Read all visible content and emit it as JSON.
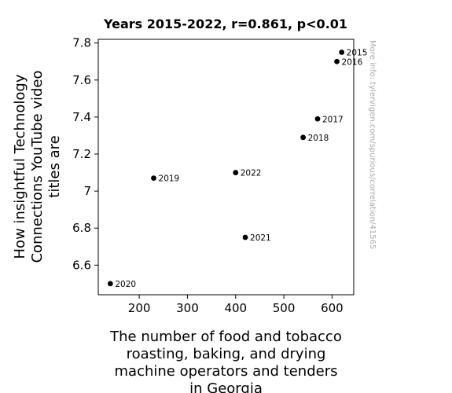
{
  "chart_data": {
    "type": "scatter",
    "title": "Years 2015-2022, r=0.861, p<0.01",
    "xlabel_lines": [
      "The number of food and tobacco",
      "roasting, baking, and drying",
      "machine operators and tenders",
      "in Georgia"
    ],
    "ylabel_lines": [
      "How insightful Technology",
      "Connections YouTube video",
      "titles are"
    ],
    "side_note": "More info: tylervigen.com/spurious/correlation/41565",
    "xlim": [
      115,
      645
    ],
    "ylim": [
      6.44,
      7.82
    ],
    "xticks": [
      200,
      300,
      400,
      500,
      600
    ],
    "xtick_labels": [
      "200",
      "300",
      "400",
      "500",
      "600"
    ],
    "yticks": [
      6.6,
      6.8,
      7.0,
      7.2,
      7.4,
      7.6,
      7.8
    ],
    "ytick_labels": [
      "6.6",
      "6.8",
      "7",
      "7.2",
      "7.4",
      "7.6",
      "7.8"
    ],
    "grid": false,
    "points": [
      {
        "label": "2015",
        "x": 620,
        "y": 7.75
      },
      {
        "label": "2016",
        "x": 610,
        "y": 7.7
      },
      {
        "label": "2017",
        "x": 570,
        "y": 7.39
      },
      {
        "label": "2018",
        "x": 540,
        "y": 7.29
      },
      {
        "label": "2019",
        "x": 230,
        "y": 7.07
      },
      {
        "label": "2020",
        "x": 140,
        "y": 6.5
      },
      {
        "label": "2021",
        "x": 420,
        "y": 6.75
      },
      {
        "label": "2022",
        "x": 400,
        "y": 7.1
      }
    ],
    "marker_color": "#000000"
  }
}
